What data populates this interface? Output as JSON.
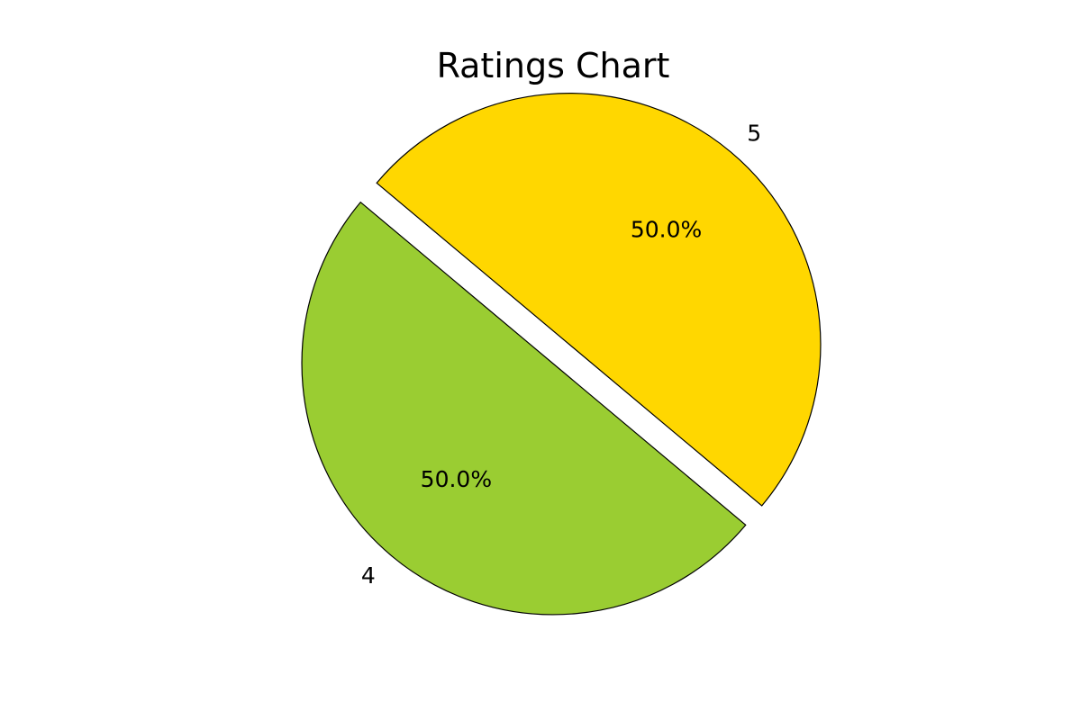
{
  "chart_data": {
    "type": "pie",
    "title": "Ratings Chart",
    "categories": [
      "4",
      "5"
    ],
    "values": [
      50.0,
      50.0
    ],
    "percent_labels": [
      "50.0%",
      "50.0%"
    ],
    "colors": [
      "#9ACD32",
      "#FFD700"
    ],
    "edge_color": "#000000",
    "start_angle_deg": 140,
    "counterclock": true,
    "explode": [
      0.0,
      0.1
    ],
    "legend": "none"
  }
}
